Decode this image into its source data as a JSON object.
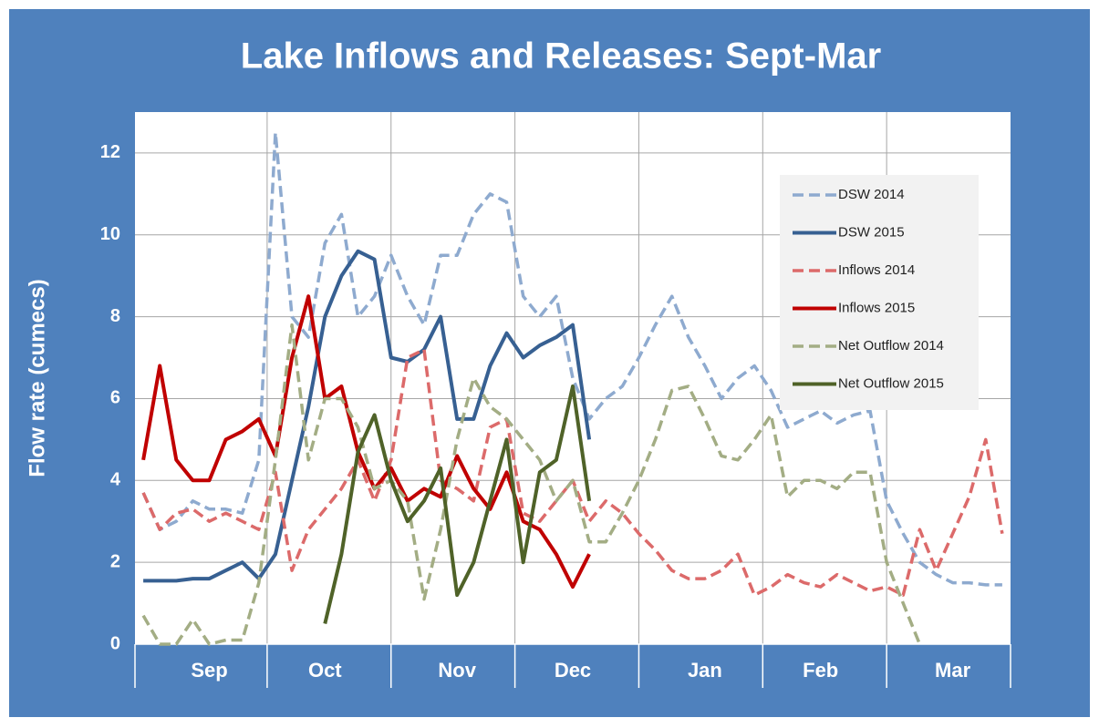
{
  "chart_data": {
    "type": "line",
    "title": "Lake Inflows and Releases:  Sept-Mar",
    "y_label": "Flow rate (cumecs)",
    "categories": [
      null,
      null,
      null,
      null,
      "Sep",
      null,
      null,
      null,
      null,
      null,
      null,
      "Oct",
      null,
      null,
      null,
      null,
      null,
      null,
      null,
      "Nov",
      null,
      null,
      null,
      null,
      null,
      null,
      "Dec",
      null,
      null,
      null,
      null,
      null,
      null,
      null,
      "Jan",
      null,
      null,
      null,
      null,
      null,
      null,
      "Feb",
      null,
      null,
      null,
      null,
      null,
      null,
      null,
      "Mar",
      null,
      null,
      null
    ],
    "ylim": [
      0,
      13
    ],
    "yticks": [
      0,
      2,
      4,
      6,
      8,
      10,
      12
    ],
    "grid": true,
    "legend": "right",
    "series": [
      {
        "name": "DSW 2014",
        "color": "#8eaacf",
        "style": "dashed",
        "values": [
          3.7,
          2.8,
          3.0,
          3.5,
          3.3,
          3.3,
          3.2,
          4.5,
          12.5,
          8.0,
          7.5,
          9.8,
          10.5,
          8.0,
          8.5,
          9.5,
          8.5,
          7.8,
          9.5,
          9.5,
          10.5,
          11.0,
          10.8,
          8.5,
          8.0,
          8.5,
          6.5,
          5.5,
          6.0,
          6.3,
          7.0,
          7.8,
          8.5,
          7.5,
          6.8,
          6.0,
          6.5,
          6.8,
          6.2,
          5.3,
          5.5,
          5.7,
          5.4,
          5.6,
          5.7,
          3.5,
          2.7,
          2.0,
          1.7,
          1.5,
          1.5,
          1.45,
          1.45
        ]
      },
      {
        "name": "DSW 2015",
        "color": "#376092",
        "style": "solid",
        "values": [
          1.55,
          1.55,
          1.55,
          1.6,
          1.6,
          1.8,
          2.0,
          1.6,
          2.2,
          4.0,
          5.8,
          8.0,
          9.0,
          9.6,
          9.4,
          7.0,
          6.9,
          7.2,
          8.0,
          5.5,
          5.5,
          6.8,
          7.6,
          7.0,
          7.3,
          7.5,
          7.8,
          5.0,
          null,
          null,
          null,
          null,
          null,
          null,
          null,
          null,
          null,
          null,
          null,
          null,
          null,
          null,
          null,
          null,
          null,
          null,
          null,
          null,
          null,
          null,
          null,
          null,
          null
        ]
      },
      {
        "name": "Inflows 2014",
        "color": "#dc6a6a",
        "style": "dashed",
        "values": [
          3.7,
          2.8,
          3.2,
          3.3,
          3.0,
          3.2,
          3.0,
          2.8,
          4.2,
          1.8,
          2.8,
          3.3,
          3.8,
          4.5,
          3.5,
          4.5,
          7.0,
          7.2,
          4.0,
          3.8,
          3.5,
          5.3,
          5.5,
          3.2,
          3.0,
          3.5,
          4.0,
          3.0,
          3.5,
          3.2,
          2.7,
          2.3,
          1.8,
          1.6,
          1.6,
          1.8,
          2.2,
          1.2,
          1.4,
          1.7,
          1.5,
          1.4,
          1.7,
          1.5,
          1.3,
          1.4,
          1.2,
          2.8,
          1.8,
          2.7,
          3.6,
          5.0,
          2.7
        ]
      },
      {
        "name": "Inflows 2015",
        "color": "#c00000",
        "style": "solid",
        "values": [
          4.5,
          6.8,
          4.5,
          4.0,
          4.0,
          5.0,
          5.2,
          5.5,
          4.6,
          7.0,
          8.5,
          6.0,
          6.3,
          4.7,
          3.8,
          4.3,
          3.5,
          3.8,
          3.6,
          4.6,
          3.8,
          3.3,
          4.2,
          3.0,
          2.8,
          2.2,
          1.4,
          2.2,
          null,
          null,
          null,
          null,
          null,
          null,
          null,
          null,
          null,
          null,
          null,
          null,
          null,
          null,
          null,
          null,
          null,
          null,
          null,
          null,
          null,
          null,
          null,
          null,
          null
        ]
      },
      {
        "name": "Net Outflow 2014",
        "color": "#a3ad84",
        "style": "dashed",
        "values": [
          0.7,
          0,
          0,
          0.6,
          0,
          0.1,
          0.1,
          1.5,
          4.5,
          7.8,
          4.5,
          6.0,
          6.0,
          5.3,
          3.8,
          4.0,
          3.5,
          1.1,
          2.8,
          5.0,
          6.5,
          5.8,
          5.5,
          5.0,
          4.5,
          3.5,
          4.0,
          2.5,
          2.5,
          3.2,
          4.0,
          5.0,
          6.2,
          6.3,
          5.5,
          4.6,
          4.5,
          5.0,
          5.6,
          3.6,
          4.0,
          4.0,
          3.8,
          4.2,
          4.2,
          2.0,
          1.0,
          0,
          null,
          null,
          null,
          null,
          null
        ]
      },
      {
        "name": "Net Outflow 2015",
        "color": "#4f6228",
        "style": "solid",
        "values": [
          null,
          null,
          null,
          null,
          null,
          null,
          null,
          null,
          null,
          null,
          null,
          0.5,
          2.2,
          4.7,
          5.6,
          4.0,
          3.0,
          3.5,
          4.3,
          1.2,
          2.0,
          3.5,
          5.0,
          2.0,
          4.2,
          4.5,
          6.3,
          3.5,
          null,
          null,
          null,
          null,
          null,
          null,
          null,
          null,
          null,
          null,
          null,
          null,
          null,
          null,
          null,
          null,
          null,
          null,
          null,
          null,
          null,
          null,
          null,
          null,
          null
        ]
      }
    ]
  }
}
